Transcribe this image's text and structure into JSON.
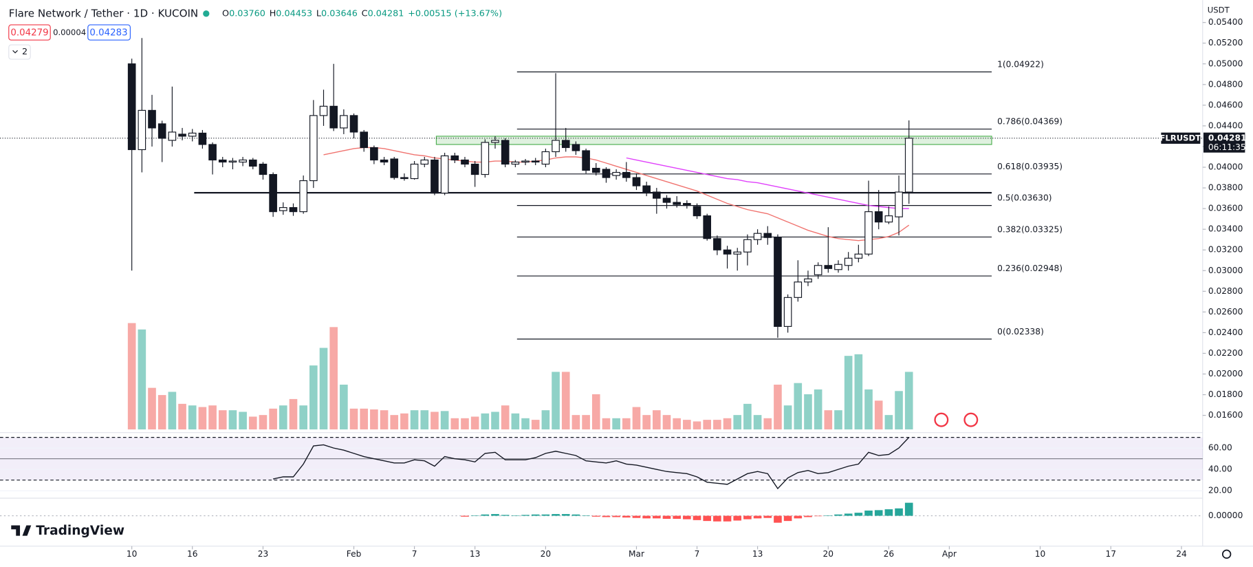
{
  "header": {
    "title": "Flare Network / Tether · 1D · KUCOIN",
    "ohlc": [
      {
        "key": "O",
        "value": "0.03760"
      },
      {
        "key": "H",
        "value": "0.04453"
      },
      {
        "key": "L",
        "value": "0.03646"
      },
      {
        "key": "C",
        "value": "0.04281"
      }
    ],
    "change": "+0.00515 (+13.67%)",
    "bid": "0.04279",
    "spread": "0.00004",
    "ask": "0.04283",
    "indicators": "2",
    "currency": "USDT",
    "brand": "TradingView"
  },
  "chart_data": {
    "type": "candlestick",
    "symbol": "FLRUSDT",
    "last_price": {
      "value": 0.04281,
      "label": "0.04281"
    },
    "countdown": "06:11:35",
    "open": [
      0.05,
      0.0417,
      0.0455,
      0.0442,
      0.0426,
      0.0432,
      0.043,
      0.0433,
      0.0422,
      0.0407,
      0.0405,
      0.0405,
      0.0407,
      0.0403,
      0.0393,
      0.0358,
      0.0361,
      0.0357,
      0.0387,
      0.045,
      0.0459,
      0.0438,
      0.045,
      0.0434,
      0.0419,
      0.0407,
      0.0408,
      0.039,
      0.0389,
      0.0403,
      0.0407,
      0.0375,
      0.0411,
      0.0407,
      0.0403,
      0.0393,
      0.0424,
      0.0426,
      0.0403,
      0.0405,
      0.0406,
      0.0403,
      0.0415,
      0.0426,
      0.0422,
      0.0416,
      0.0399,
      0.0398,
      0.0392,
      0.0395,
      0.039,
      0.0382,
      0.0376,
      0.037,
      0.0366,
      0.0365,
      0.0362,
      0.0353,
      0.0331,
      0.032,
      0.0316,
      0.0318,
      0.033,
      0.0336,
      0.0332,
      0.0246,
      0.0274,
      0.0289,
      0.0296,
      0.0305,
      0.0301,
      0.0305,
      0.0312,
      0.0316,
      0.0357,
      0.0347,
      0.0352,
      0.0376
    ],
    "high": [
      0.0505,
      0.0525,
      0.047,
      0.0445,
      0.0478,
      0.0438,
      0.0437,
      0.0436,
      0.0424,
      0.041,
      0.0409,
      0.041,
      0.0409,
      0.0405,
      0.0395,
      0.0366,
      0.0365,
      0.0392,
      0.0465,
      0.0475,
      0.05,
      0.0456,
      0.0452,
      0.0436,
      0.0421,
      0.041,
      0.041,
      0.0394,
      0.0406,
      0.041,
      0.041,
      0.0414,
      0.0414,
      0.041,
      0.0406,
      0.0427,
      0.043,
      0.0428,
      0.0407,
      0.0408,
      0.0409,
      0.0418,
      0.0491,
      0.0438,
      0.0425,
      0.0418,
      0.0404,
      0.04,
      0.0398,
      0.0405,
      0.0394,
      0.0386,
      0.038,
      0.0373,
      0.0372,
      0.0368,
      0.0365,
      0.0355,
      0.0334,
      0.0324,
      0.0322,
      0.0335,
      0.034,
      0.0343,
      0.0335,
      0.0277,
      0.031,
      0.03,
      0.0308,
      0.0342,
      0.031,
      0.0318,
      0.0325,
      0.0387,
      0.0378,
      0.0362,
      0.0392,
      0.04453
    ],
    "low": [
      0.03,
      0.0395,
      0.042,
      0.0405,
      0.042,
      0.0426,
      0.0425,
      0.0418,
      0.0393,
      0.04,
      0.0398,
      0.0401,
      0.0398,
      0.0388,
      0.0352,
      0.0354,
      0.0353,
      0.0355,
      0.038,
      0.044,
      0.0435,
      0.0432,
      0.0428,
      0.0415,
      0.0403,
      0.0402,
      0.0388,
      0.0387,
      0.0388,
      0.04,
      0.0373,
      0.0373,
      0.0404,
      0.04,
      0.0381,
      0.039,
      0.0418,
      0.04,
      0.04,
      0.0402,
      0.0402,
      0.04,
      0.041,
      0.0415,
      0.0412,
      0.0394,
      0.0392,
      0.0385,
      0.0388,
      0.0386,
      0.0378,
      0.0372,
      0.0355,
      0.036,
      0.0361,
      0.036,
      0.035,
      0.0329,
      0.0315,
      0.0302,
      0.03,
      0.0305,
      0.0325,
      0.0325,
      0.0235,
      0.024,
      0.027,
      0.0285,
      0.0292,
      0.0298,
      0.0298,
      0.03,
      0.0308,
      0.0314,
      0.034,
      0.0345,
      0.0334,
      0.03646
    ],
    "close": [
      0.0417,
      0.0455,
      0.0438,
      0.0428,
      0.0434,
      0.043,
      0.0433,
      0.0422,
      0.0407,
      0.0405,
      0.0406,
      0.0407,
      0.0401,
      0.0393,
      0.0357,
      0.0361,
      0.0357,
      0.0387,
      0.045,
      0.0459,
      0.0438,
      0.045,
      0.0434,
      0.0419,
      0.0407,
      0.0405,
      0.039,
      0.0389,
      0.0403,
      0.0407,
      0.0375,
      0.0411,
      0.0407,
      0.0403,
      0.0393,
      0.0424,
      0.0426,
      0.0403,
      0.0405,
      0.0406,
      0.0405,
      0.0415,
      0.0426,
      0.0419,
      0.0416,
      0.0397,
      0.0395,
      0.039,
      0.0395,
      0.039,
      0.0382,
      0.0376,
      0.037,
      0.0366,
      0.0364,
      0.0363,
      0.0353,
      0.0331,
      0.032,
      0.0316,
      0.0318,
      0.033,
      0.0336,
      0.0332,
      0.0246,
      0.0274,
      0.0289,
      0.0292,
      0.0305,
      0.0302,
      0.0306,
      0.0312,
      0.0316,
      0.0357,
      0.0347,
      0.0353,
      0.0376,
      0.04281
    ],
    "volume": [
      133,
      125,
      52,
      43,
      47,
      32,
      30,
      28,
      30,
      24,
      24,
      22,
      16,
      18,
      26,
      30,
      38,
      30,
      80,
      102,
      128,
      56,
      26,
      26,
      25,
      24,
      18,
      20,
      24,
      24,
      22,
      23,
      14,
      14,
      16,
      20,
      22,
      30,
      20,
      14,
      12,
      24,
      72,
      72,
      18,
      18,
      44,
      14,
      14,
      14,
      28,
      18,
      24,
      18,
      14,
      12,
      10,
      12,
      12,
      14,
      18,
      32,
      18,
      14,
      56,
      30,
      58,
      44,
      50,
      24,
      24,
      92,
      94,
      50,
      36,
      18,
      48,
      72
    ],
    "ma20": [
      null,
      null,
      null,
      null,
      null,
      null,
      null,
      null,
      null,
      null,
      null,
      null,
      null,
      null,
      null,
      null,
      null,
      null,
      null,
      0.0412,
      0.0414,
      0.0416,
      0.0418,
      0.0419,
      0.0419,
      0.0418,
      0.0416,
      0.0414,
      0.0412,
      0.0411,
      0.0409,
      0.0408,
      0.0407,
      0.0406,
      0.0405,
      0.0405,
      0.0406,
      0.0406,
      0.0405,
      0.0405,
      0.0406,
      0.0407,
      0.0409,
      0.041,
      0.041,
      0.0409,
      0.0407,
      0.0404,
      0.0401,
      0.0398,
      0.0395,
      0.0392,
      0.0389,
      0.0386,
      0.0383,
      0.038,
      0.0377,
      0.0373,
      0.0369,
      0.0365,
      0.0362,
      0.0359,
      0.0357,
      0.0355,
      0.0351,
      0.0347,
      0.0343,
      0.0339,
      0.0336,
      0.0333,
      0.0331,
      0.033,
      0.0329,
      0.033,
      0.0331,
      0.0333,
      0.0337,
      0.0344
    ],
    "ma50": [
      null,
      null,
      null,
      null,
      null,
      null,
      null,
      null,
      null,
      null,
      null,
      null,
      null,
      null,
      null,
      null,
      null,
      null,
      null,
      null,
      null,
      null,
      null,
      null,
      null,
      null,
      null,
      null,
      null,
      null,
      null,
      null,
      null,
      null,
      null,
      null,
      null,
      null,
      null,
      null,
      null,
      null,
      null,
      null,
      null,
      null,
      null,
      null,
      null,
      0.0409,
      0.0407,
      0.0405,
      0.0403,
      0.0401,
      0.0399,
      0.0397,
      0.0395,
      0.0393,
      0.0391,
      0.0389,
      0.0388,
      0.0386,
      0.0385,
      0.0383,
      0.0381,
      0.0379,
      0.0377,
      0.0375,
      0.0373,
      0.0371,
      0.0369,
      0.0367,
      0.0365,
      0.0363,
      0.0362,
      0.0361,
      0.036,
      0.036
    ],
    "ylim": [
      0.01433,
      0.05617
    ],
    "yticks": [
      {
        "value": 0.054,
        "label": "0.05400"
      },
      {
        "value": 0.052,
        "label": "0.05200"
      },
      {
        "value": 0.05,
        "label": "0.05000"
      },
      {
        "value": 0.048,
        "label": "0.04800"
      },
      {
        "value": 0.046,
        "label": "0.04600"
      },
      {
        "value": 0.044,
        "label": "0.04400"
      },
      {
        "value": 0.042,
        "label": "0.04200"
      },
      {
        "value": 0.04,
        "label": "0.04000"
      },
      {
        "value": 0.038,
        "label": "0.03800"
      },
      {
        "value": 0.036,
        "label": "0.03600"
      },
      {
        "value": 0.034,
        "label": "0.03400"
      },
      {
        "value": 0.032,
        "label": "0.03200"
      },
      {
        "value": 0.03,
        "label": "0.03000"
      },
      {
        "value": 0.028,
        "label": "0.02800"
      },
      {
        "value": 0.026,
        "label": "0.02600"
      },
      {
        "value": 0.024,
        "label": "0.02400"
      },
      {
        "value": 0.022,
        "label": "0.02200"
      },
      {
        "value": 0.02,
        "label": "0.02000"
      },
      {
        "value": 0.018,
        "label": "0.01800"
      },
      {
        "value": 0.016,
        "label": "0.01600"
      }
    ],
    "xlim": [
      -13.06,
      106.1
    ],
    "xticks": [
      {
        "value": 0,
        "label": "10"
      },
      {
        "value": 6,
        "label": "16"
      },
      {
        "value": 13,
        "label": "23"
      },
      {
        "value": 22,
        "label": "Feb"
      },
      {
        "value": 28,
        "label": "7"
      },
      {
        "value": 34,
        "label": "13"
      },
      {
        "value": 41,
        "label": "20"
      },
      {
        "value": 50,
        "label": "Mar"
      },
      {
        "value": 56,
        "label": "7"
      },
      {
        "value": 62,
        "label": "13"
      },
      {
        "value": 69,
        "label": "20"
      },
      {
        "value": 75,
        "label": "26"
      },
      {
        "value": 81,
        "label": "Apr"
      },
      {
        "value": 90,
        "label": "10"
      },
      {
        "value": 97,
        "label": "17"
      },
      {
        "value": 104,
        "label": "24"
      }
    ],
    "fib": [
      {
        "value": 0.04922,
        "label": "1(0.04922)"
      },
      {
        "value": 0.04369,
        "label": "0.786(0.04369)"
      },
      {
        "value": 0.03935,
        "label": "0.618(0.03935)"
      },
      {
        "value": 0.0363,
        "label": "0.5(0.03630)"
      },
      {
        "value": 0.03325,
        "label": "0.382(0.03325)"
      },
      {
        "value": 0.02948,
        "label": "0.236(0.02948)"
      },
      {
        "value": 0.02338,
        "label": "0(0.02338)"
      }
    ],
    "support_line": 0.03753,
    "zone": [
      0.0422,
      0.043
    ],
    "rsi": {
      "values": [
        null,
        null,
        null,
        null,
        null,
        null,
        null,
        null,
        null,
        null,
        null,
        null,
        null,
        null,
        31,
        33,
        33,
        45,
        62,
        63,
        60,
        58,
        55,
        52,
        50,
        48,
        46,
        46,
        49,
        48,
        43,
        52,
        50,
        49,
        47,
        55,
        56,
        49,
        49,
        49,
        51,
        55,
        57,
        55,
        53,
        48,
        47,
        46,
        48,
        45,
        44,
        42,
        40,
        38,
        37,
        36,
        33,
        28,
        27,
        26,
        31,
        36,
        38,
        36,
        22,
        32,
        37,
        39,
        36,
        37,
        40,
        43,
        45,
        56,
        53,
        54,
        60,
        70
      ],
      "ylim": [
        13.77,
        71.45
      ],
      "yticks": [
        {
          "value": 60,
          "label": "60.00"
        },
        {
          "value": 40,
          "label": "40.00"
        },
        {
          "value": 20,
          "label": "20.00"
        }
      ],
      "bands": [
        30,
        50,
        70
      ]
    },
    "macd": {
      "values": [
        null,
        null,
        null,
        null,
        null,
        null,
        null,
        null,
        null,
        null,
        null,
        null,
        null,
        null,
        null,
        null,
        null,
        null,
        null,
        null,
        null,
        null,
        null,
        null,
        null,
        null,
        null,
        null,
        null,
        null,
        null,
        null,
        null,
        -2e-05,
        1e-05,
        3e-05,
        4e-05,
        2e-05,
        1e-05,
        2e-05,
        3e-05,
        3e-05,
        4e-05,
        4e-05,
        3e-05,
        1e-05,
        -2e-05,
        -3e-05,
        -3e-05,
        -4e-05,
        -5e-05,
        -6e-05,
        -6e-05,
        -7e-05,
        -7e-05,
        -8e-05,
        -0.0001,
        -0.00012,
        -0.00013,
        -0.00013,
        -0.00011,
        -8e-05,
        -6e-05,
        -5e-05,
        -0.00016,
        -0.00012,
        -6e-05,
        -3e-05,
        -1e-05,
        1e-05,
        3e-05,
        5e-05,
        7e-05,
        0.00012,
        0.00013,
        0.00015,
        0.00017,
        0.0003
      ],
      "ylim": [
        -0.00035,
        0.00035
      ],
      "yticks": [
        {
          "value": 0,
          "label": "0.00000"
        }
      ]
    }
  }
}
